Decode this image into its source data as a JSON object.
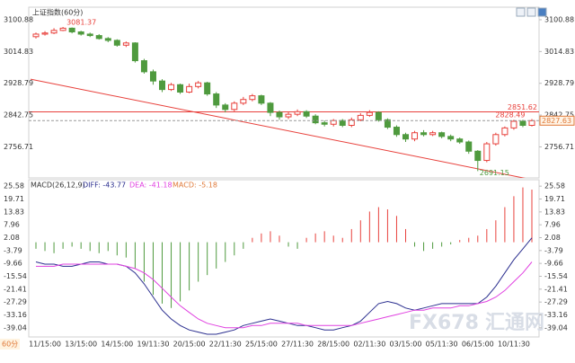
{
  "chart_data": [
    {
      "type": "candlestick",
      "title": "上证指数(60分)",
      "categories": [
        null,
        "11/15:00",
        null,
        null,
        null,
        "13/15:00",
        null,
        null,
        null,
        "14/15:00",
        null,
        null,
        null,
        "19/11:30",
        null,
        null,
        null,
        "20/15:00",
        null,
        null,
        null,
        "22/11:30",
        null,
        null,
        null,
        "25/15:00",
        null,
        null,
        null,
        "27/11:30",
        null,
        null,
        null,
        "28/15:00",
        null,
        null,
        null,
        "02/11:30",
        null,
        null,
        null,
        "03/15:00",
        null,
        null,
        null,
        "05/11:30",
        null,
        null,
        null,
        "06/15:00",
        null,
        null,
        null,
        "10/11:30",
        null,
        null
      ],
      "open": [
        3055,
        3062,
        3065,
        3072,
        3078,
        3068,
        3062,
        3058,
        3050,
        3045,
        3032,
        3038,
        2990,
        2960,
        2935,
        2912,
        2925,
        2905,
        2920,
        2930,
        2900,
        2870,
        2858,
        2875,
        2885,
        2895,
        2875,
        2850,
        2838,
        2845,
        2852,
        2840,
        2822,
        2818,
        2828,
        2815,
        2830,
        2842,
        2850,
        2830,
        2810,
        2790,
        2778,
        2795,
        2790,
        2795,
        2785,
        2778,
        2770,
        2745,
        2720,
        2765,
        2790,
        2808,
        2826,
        2815
      ],
      "close": [
        3062,
        3065,
        3072,
        3078,
        3068,
        3062,
        3058,
        3050,
        3045,
        3032,
        3038,
        2990,
        2960,
        2935,
        2912,
        2925,
        2905,
        2920,
        2930,
        2900,
        2870,
        2858,
        2875,
        2885,
        2895,
        2875,
        2850,
        2838,
        2845,
        2852,
        2840,
        2822,
        2818,
        2828,
        2815,
        2830,
        2842,
        2850,
        2830,
        2810,
        2790,
        2778,
        2795,
        2790,
        2795,
        2785,
        2778,
        2770,
        2745,
        2720,
        2765,
        2790,
        2808,
        2826,
        2815,
        2827.63
      ],
      "high": [
        3066,
        3070,
        3078,
        3081.37,
        3080,
        3071,
        3066,
        3062,
        3054,
        3048,
        3042,
        3040,
        2995,
        2966,
        2940,
        2930,
        2928,
        2928,
        2935,
        2933,
        2905,
        2875,
        2880,
        2892,
        2900,
        2898,
        2878,
        2855,
        2852,
        2858,
        2856,
        2845,
        2828,
        2832,
        2832,
        2836,
        2848,
        2856,
        2853,
        2834,
        2815,
        2795,
        2800,
        2802,
        2800,
        2798,
        2790,
        2782,
        2774,
        2748,
        2770,
        2795,
        2812,
        2830,
        2830,
        2832
      ],
      "low": [
        3050,
        3058,
        3062,
        3070,
        3064,
        3058,
        3054,
        3047,
        3040,
        3028,
        3027,
        2985,
        2955,
        2925,
        2905,
        2908,
        2900,
        2902,
        2915,
        2895,
        2862,
        2850,
        2853,
        2870,
        2880,
        2870,
        2840,
        2830,
        2832,
        2840,
        2835,
        2818,
        2812,
        2812,
        2810,
        2810,
        2826,
        2838,
        2825,
        2805,
        2784,
        2770,
        2772,
        2785,
        2786,
        2780,
        2772,
        2765,
        2738,
        2691.15,
        2715,
        2760,
        2785,
        2803,
        2810,
        2812
      ],
      "up_color": "#e8413c",
      "down_color": "#4f9a3e",
      "hline": 2851.62,
      "hline_color": "#e8413c",
      "cursor_value": 2828.49,
      "trendline": [
        2940,
        2668
      ],
      "trendline_color": "#e8413c",
      "ylim": [
        2680,
        3130
      ],
      "yticks": [
        3100.88,
        3014.83,
        2928.79,
        2842.75,
        2756.71
      ]
    },
    {
      "type": "macd",
      "title": "MACD(26,12,9)",
      "histogram": {
        "name": "MACD: -5.18",
        "color": "#e07a3a",
        "up_color": "#e8413c",
        "down_color": "#4f9a3e",
        "values": [
          -3,
          -4,
          -5,
          -3,
          -2,
          -3,
          -4,
          -5,
          -4,
          -6,
          -7,
          -12,
          -18,
          -24,
          -28,
          -30,
          -27,
          -22,
          -18,
          -15,
          -12,
          -9,
          -6,
          -3,
          2,
          4,
          5,
          3,
          -2,
          -3,
          2,
          4,
          5,
          3,
          2,
          6,
          10,
          14,
          16,
          15,
          12,
          6,
          -2,
          -4,
          -3,
          -2,
          -1,
          1,
          2,
          3,
          6,
          10,
          16,
          21,
          25,
          24
        ]
      },
      "series": [
        {
          "name": "DIFF: -43.77",
          "color": "#2b2f8f",
          "values": [
            -9,
            -10,
            -10,
            -11,
            -11,
            -10,
            -9,
            -9,
            -10,
            -10,
            -11,
            -14,
            -19,
            -25,
            -31,
            -35,
            -38,
            -40,
            -41,
            -42,
            -42,
            -41,
            -40,
            -38,
            -37,
            -36,
            -35,
            -36,
            -37,
            -38,
            -38,
            -39,
            -40,
            -40,
            -39,
            -38,
            -36,
            -32,
            -28,
            -27,
            -28,
            -30,
            -31,
            -30,
            -29,
            -28,
            -28,
            -28,
            -28,
            -28,
            -25,
            -20,
            -14,
            -8,
            -3,
            2
          ]
        },
        {
          "name": "DEA: -41.18",
          "color": "#e040e0",
          "values": [
            -11,
            -11,
            -11,
            -10,
            -10,
            -10,
            -10,
            -10,
            -10,
            -10,
            -11,
            -12,
            -14,
            -17,
            -21,
            -25,
            -29,
            -32,
            -35,
            -37,
            -38,
            -39,
            -39,
            -39,
            -38,
            -38,
            -37,
            -37,
            -37,
            -37,
            -38,
            -38,
            -38,
            -38,
            -38,
            -38,
            -37,
            -36,
            -35,
            -34,
            -33,
            -32,
            -31,
            -31,
            -30,
            -30,
            -30,
            -29,
            -29,
            -28,
            -27,
            -25,
            -22,
            -18,
            -14,
            -9
          ]
        }
      ],
      "ylim": [
        -42.8,
        27.7
      ],
      "yticks": [
        25.58,
        19.71,
        13.83,
        7.96,
        2.08,
        -3.79,
        -9.66,
        -15.54,
        -21.41,
        -27.29,
        -33.16,
        -39.04
      ]
    },
    {
      "type": "watermark",
      "period": "60分",
      "brand": "FX678",
      "brand_cn": "汇通网"
    }
  ]
}
